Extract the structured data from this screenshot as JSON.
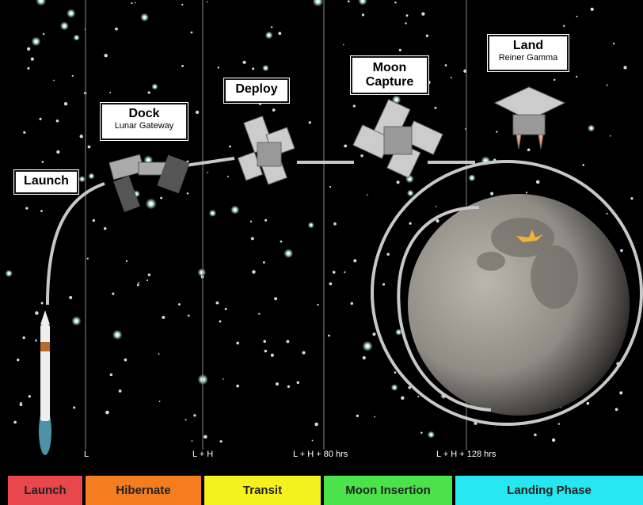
{
  "stages": [
    {
      "title": "Launch"
    },
    {
      "title": "Dock",
      "subtitle": "Lunar Gateway"
    },
    {
      "title": "Deploy"
    },
    {
      "title": "Moon Capture"
    },
    {
      "title": "Land",
      "subtitle": "Reiner Gamma"
    }
  ],
  "timeline": [
    "L",
    "L + H",
    "L + H + 80 hrs",
    "L + H + 128 hrs"
  ],
  "phases": [
    {
      "label": "Launch",
      "color": "#e8474c"
    },
    {
      "label": "Hibernate",
      "color": "#f57c1f"
    },
    {
      "label": "Transit",
      "color": "#f4f21e"
    },
    {
      "label": "Moon Insertion",
      "color": "#4ce34a"
    },
    {
      "label": "Landing Phase",
      "color": "#26e6ef"
    }
  ]
}
